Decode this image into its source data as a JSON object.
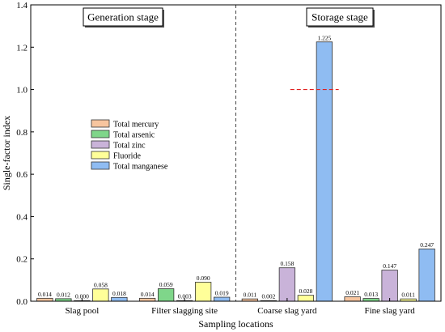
{
  "chart_data": {
    "type": "bar",
    "xlabel": "Sampling locations",
    "ylabel": "Single-factor index",
    "ylim": [
      0,
      1.4
    ],
    "yticks": [
      "0.0",
      "0.2",
      "0.4",
      "0.6",
      "0.8",
      "1.0",
      "1.2",
      "1.4"
    ],
    "categories": [
      "Slag pool",
      "Filter slagging site",
      "Coarse slag yard",
      "Fine slag yard"
    ],
    "series": [
      {
        "name": "Total mercury",
        "color": "#f7c59f",
        "values": [
          0.014,
          0.014,
          0.011,
          0.021
        ],
        "labels": [
          "0.014",
          "0.014",
          "0.011",
          "0.021"
        ]
      },
      {
        "name": "Total arsenic",
        "color": "#7fd68a",
        "values": [
          0.012,
          0.059,
          0.002,
          0.013
        ],
        "labels": [
          "0.012",
          "0.059",
          "0.002",
          "0.013"
        ]
      },
      {
        "name": "Total zinc",
        "color": "#c9b3d9",
        "values": [
          0.0,
          0.003,
          0.158,
          0.147
        ],
        "labels": [
          "0.000",
          "0.003",
          "0.158",
          "0.147"
        ]
      },
      {
        "name": "Fluoride",
        "color": "#ffff99",
        "values": [
          0.058,
          0.09,
          0.028,
          0.011
        ],
        "labels": [
          "0.058",
          "0.090",
          "0.028",
          "0.011"
        ]
      },
      {
        "name": "Total manganese",
        "color": "#8fbcf2",
        "values": [
          0.018,
          0.019,
          1.225,
          0.247
        ],
        "labels": [
          "0.018",
          "0.019",
          "1.225",
          "0.247"
        ]
      }
    ],
    "stages": [
      "Generation stage",
      "Storage stage"
    ],
    "threshold": {
      "value": 1.0,
      "color": "#e02020"
    },
    "legend_position": "center-left",
    "grid": false
  }
}
